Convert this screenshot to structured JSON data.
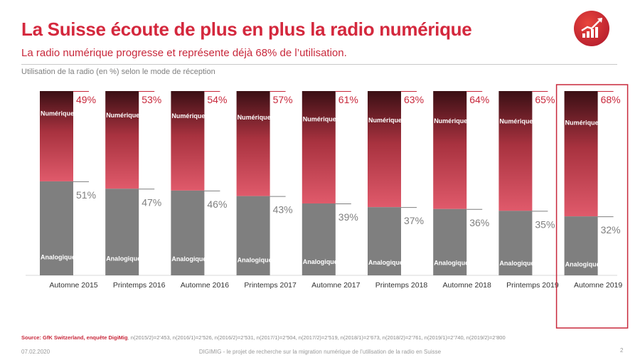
{
  "header": {
    "title": "La Suisse écoute de plus en plus la radio numérique",
    "subtitle": "La radio numérique progresse et représente déjà 68% de l’utilisation.",
    "logo_icon": "growth-chart-icon"
  },
  "chart_data": {
    "type": "bar",
    "stacked": true,
    "label": "Utilisation de la radio (en %) selon le mode de réception",
    "categories": [
      "Automne 2015",
      "Printemps 2016",
      "Automne 2016",
      "Printemps 2017",
      "Automne 2017",
      "Printemps 2018",
      "Automne 2018",
      "Printemps 2019",
      "Automne 2019"
    ],
    "series": [
      {
        "name": "Analogique",
        "values": [
          51,
          47,
          46,
          43,
          39,
          37,
          36,
          35,
          32
        ],
        "labels": [
          "51%",
          "47%",
          "46%",
          "43%",
          "39%",
          "37%",
          "36%",
          "35%",
          "32%"
        ],
        "color": "#7f7f7f"
      },
      {
        "name": "Numérique",
        "values": [
          49,
          53,
          54,
          57,
          61,
          63,
          64,
          65,
          68
        ],
        "labels": [
          "49%",
          "53%",
          "54%",
          "57%",
          "61%",
          "63%",
          "64%",
          "65%",
          "68%"
        ],
        "color": "#d94a5d"
      }
    ],
    "ylim": [
      0,
      100
    ],
    "highlighted_category": "Automne 2019",
    "highlight_color": "#c8283b"
  },
  "footer": {
    "source_label": "Source: GfK Switzerland, enquête DigiMig",
    "source_detail": ", n(2015/2)=2’453, n(2016/1)=2’526, n(2016/2)=2’531, n(2017/1)=2’504, n(2017/2)=2’519, n(2018/1)=2’673, n(2018/2)=2’761, n(2019/1)=2’740, n(2019/2)=2’800",
    "date": "07.02.2020",
    "center_text": "DIGIMIG - le projet de recherche sur la migration numérique de l’utilisation de la radio en Suisse",
    "page_number": "2"
  }
}
